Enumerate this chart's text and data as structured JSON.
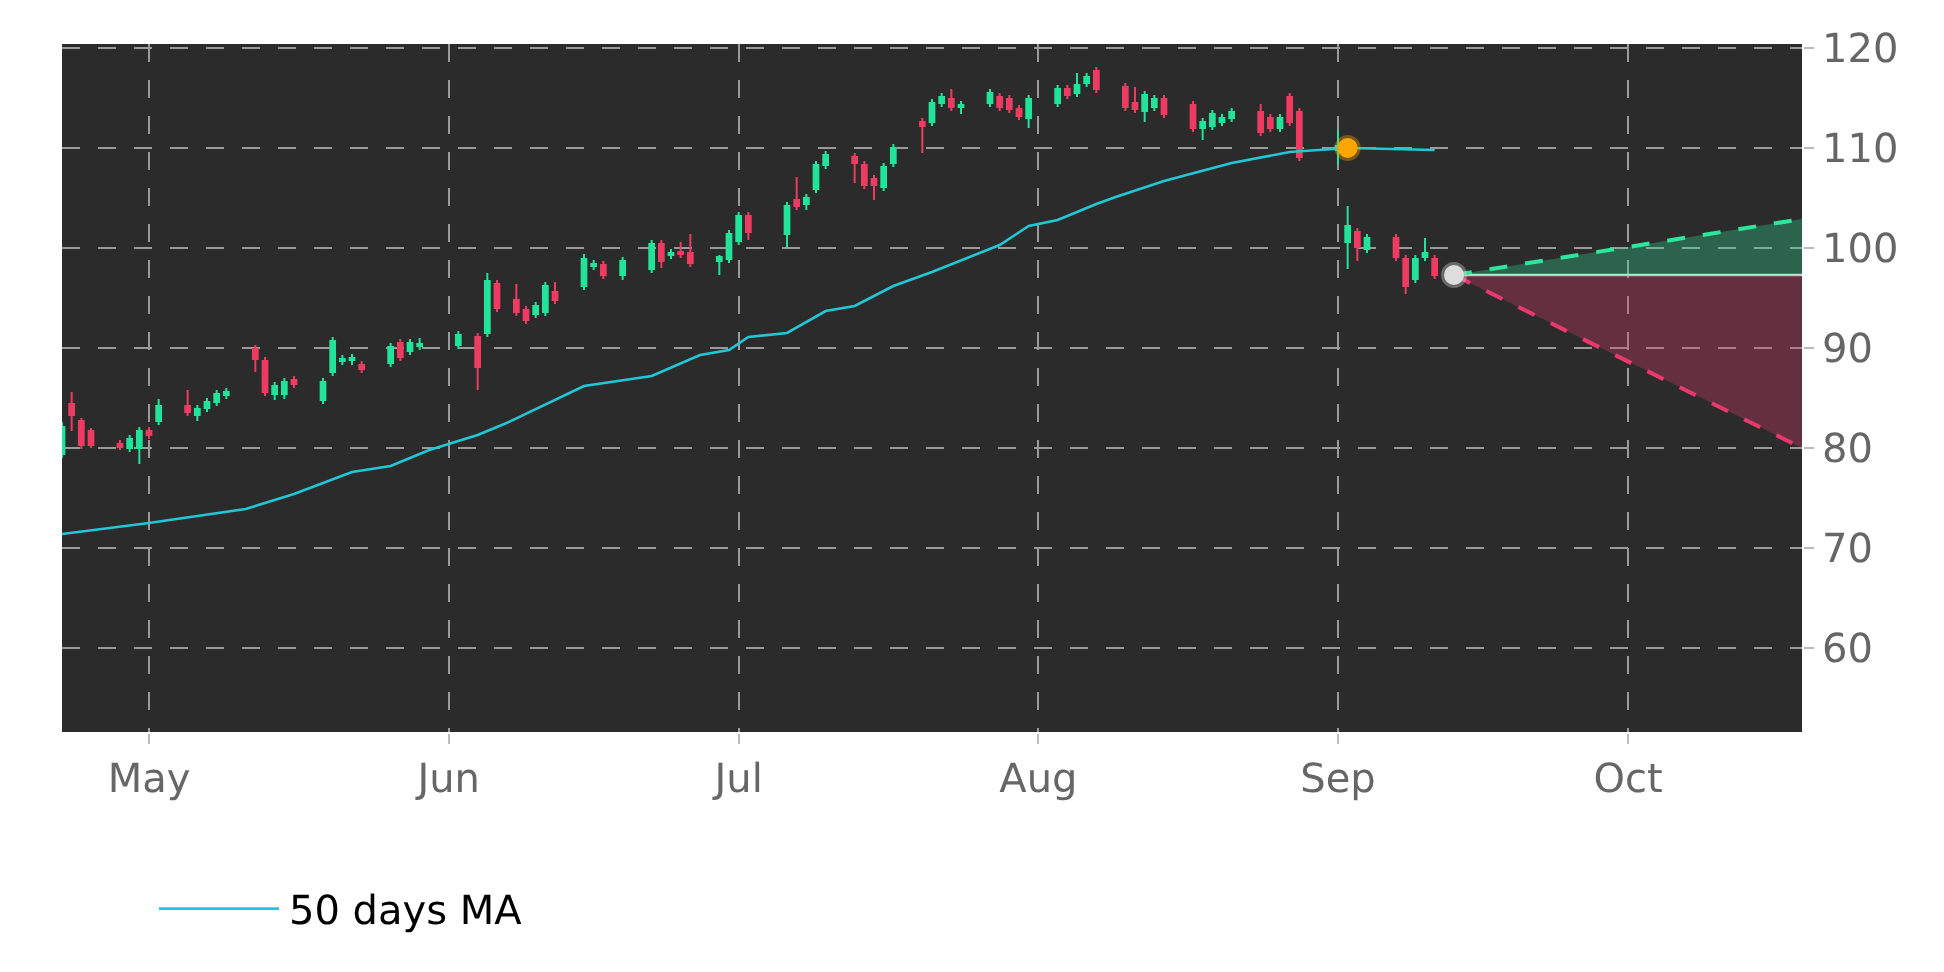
{
  "chart_data": {
    "type": "candlestick",
    "xlim": [
      "--04-22",
      "--10-19"
    ],
    "xticks": [
      {
        "value": "--05-01",
        "label": "May"
      },
      {
        "value": "--06-01",
        "label": "Jun"
      },
      {
        "value": "--07-01",
        "label": "Jul"
      },
      {
        "value": "--08-01",
        "label": "Aug"
      },
      {
        "value": "--09-01",
        "label": "Sep"
      },
      {
        "value": "--10-01",
        "label": "Oct"
      }
    ],
    "ylim": [
      51.6,
      120.4
    ],
    "yticks": [
      60,
      70,
      80,
      90,
      100,
      110,
      120
    ],
    "grid": true,
    "legend": "bottom",
    "series": [
      {
        "type": "line",
        "name": "50 days MA",
        "color": "#22c7d6",
        "x": [
          "--04-22",
          "--05-01",
          "--05-11",
          "--05-16",
          "--05-22",
          "--05-26",
          "--05-30",
          "--06-04",
          "--06-07",
          "--06-15",
          "--06-22",
          "--06-27",
          "--06-30",
          "--07-02",
          "--07-06",
          "--07-10",
          "--07-13",
          "--07-17",
          "--07-21",
          "--07-28",
          "--07-31",
          "--08-03",
          "--08-07",
          "--08-09",
          "--08-14",
          "--08-21",
          "--08-27",
          "--09-02",
          "--09-11"
        ],
        "values": [
          71.4,
          72.5,
          73.9,
          75.4,
          77.6,
          78.2,
          79.8,
          81.3,
          82.5,
          86.2,
          87.2,
          89.3,
          89.8,
          91.1,
          91.5,
          93.7,
          94.2,
          96.2,
          97.6,
          100.3,
          102.2,
          102.8,
          104.4,
          105.1,
          106.7,
          108.5,
          109.6,
          110.0,
          109.8
        ]
      },
      {
        "type": "line",
        "color": "#e8e8e8",
        "x": [
          "--09-13",
          "--10-19"
        ],
        "values": [
          97.3,
          97.3
        ]
      },
      {
        "type": "line",
        "color": "#2ee59d",
        "line_style": "dashed",
        "x": [
          "--09-13",
          "--10-19"
        ],
        "values": [
          97.3,
          102.9
        ],
        "lower": [
          97.3,
          97.3
        ],
        "upper": [
          97.3,
          102.9
        ]
      },
      {
        "type": "line",
        "color": "#e8386d",
        "line_style": "dashed",
        "x": [
          "--09-13",
          "--10-19"
        ],
        "values": [
          97.3,
          80.0
        ],
        "lower": [
          97.3,
          80.0
        ],
        "upper": [
          97.3,
          97.3
        ]
      },
      {
        "type": "scatter",
        "color": "#ffa500",
        "marker": "circle",
        "x": [
          "--09-02"
        ],
        "values": [
          110.0
        ]
      },
      {
        "type": "scatter",
        "color": "#dddddd",
        "marker": "circle",
        "x": [
          "--09-13"
        ],
        "values": [
          97.3
        ]
      },
      {
        "colors": [
          "#22e39a",
          "#ee3b62",
          "#ee3b62",
          "#ee3b62",
          "#ee3b62",
          "#22e39a",
          "#22e39a",
          "#ee3b62",
          "#22e39a",
          "#ee3b62",
          "#22e39a",
          "#22e39a",
          "#22e39a",
          "#22e39a",
          "#ee3b62",
          "#ee3b62",
          "#22e39a",
          "#22e39a",
          "#ee3b62",
          "#22e39a",
          "#22e39a",
          "#22e39a",
          "#22e39a",
          "#ee3b62",
          "#22e39a",
          "#ee3b62",
          "#22e39a",
          "#22e39a",
          "#22e39a",
          "#ee3b62",
          "#22e39a",
          "#ee3b62",
          "#ee3b62",
          "#ee3b62",
          "#22e39a",
          "#22e39a",
          "#ee3b62",
          "#22e39a",
          "#22e39a",
          "#ee3b62",
          "#22e39a",
          "#22e39a",
          "#ee3b62",
          "#22e39a",
          "#ee3b62",
          "#ee3b62",
          "#22e39a",
          "#22e39a",
          "#22e39a",
          "#ee3b62",
          "#22e39a",
          "#ee3b62",
          "#22e39a",
          "#22e39a",
          "#22e39a",
          "#ee3b62",
          "#ee3b62",
          "#ee3b62",
          "#22e39a",
          "#22e39a",
          "#ee3b62",
          "#22e39a",
          "#22e39a",
          "#ee3b62",
          "#22e39a",
          "#22e39a",
          "#ee3b62",
          "#ee3b62",
          "#ee3b62",
          "#22e39a",
          "#22e39a",
          "#ee3b62",
          "#22e39a",
          "#22e39a",
          "#ee3b62",
          "#ee3b62",
          "#ee3b62",
          "#22e39a",
          "#22e39a",
          "#ee3b62",
          "#ee3b62",
          "#22e39a",
          "#22e39a",
          "#22e39a",
          "#22e39a",
          "#ee3b62",
          "#ee3b62",
          "#22e39a",
          "#ee3b62",
          "#ee3b62",
          "#22e39a",
          "#22e39a",
          "#ee3b62",
          "#22e39a",
          "#ee3b62",
          "#ee3b62",
          "#22e39a",
          "#22e39a",
          "#ee3b62"
        ],
        "x": [
          "--04-22",
          "--04-23",
          "--04-24",
          "--04-25",
          "--04-28",
          "--04-29",
          "--04-30",
          "--05-01",
          "--05-02",
          "--05-05",
          "--05-06",
          "--05-07",
          "--05-08",
          "--05-09",
          "--05-12",
          "--05-13",
          "--05-14",
          "--05-15",
          "--05-16",
          "--05-19",
          "--05-20",
          "--05-21",
          "--05-22",
          "--05-23",
          "--05-26",
          "--05-27",
          "--05-28",
          "--05-29",
          "--06-02",
          "--06-04",
          "--06-05",
          "--06-06",
          "--06-08",
          "--06-09",
          "--06-10",
          "--06-11",
          "--06-12",
          "--06-15",
          "--06-16",
          "--06-17",
          "--06-19",
          "--06-22",
          "--06-23",
          "--06-24",
          "--06-25",
          "--06-26",
          "--06-29",
          "--06-30",
          "--07-01",
          "--07-02",
          "--07-06",
          "--07-07",
          "--07-08",
          "--07-09",
          "--07-10",
          "--07-13",
          "--07-14",
          "--07-15",
          "--07-16",
          "--07-17",
          "--07-20",
          "--07-21",
          "--07-22",
          "--07-23",
          "--07-24",
          "--07-27",
          "--07-28",
          "--07-29",
          "--07-30",
          "--07-31",
          "--08-03",
          "--08-04",
          "--08-05",
          "--08-06",
          "--08-07",
          "--08-10",
          "--08-11",
          "--08-12",
          "--08-13",
          "--08-14",
          "--08-17",
          "--08-18",
          "--08-19",
          "--08-20",
          "--08-21",
          "--08-24",
          "--08-25",
          "--08-26",
          "--08-27",
          "--08-28",
          "--09-01",
          "--09-02",
          "--09-03",
          "--09-04",
          "--09-07",
          "--09-08",
          "--09-09",
          "--09-10",
          "--09-11"
        ],
        "ohlc": [
          [
            79.4,
            82.6,
            79.0,
            82.1
          ],
          [
            84.4,
            85.6,
            81.7,
            83.3
          ],
          [
            82.7,
            83.0,
            79.9,
            80.3
          ],
          [
            81.7,
            82.0,
            80.0,
            80.3
          ],
          [
            80.4,
            80.8,
            79.8,
            80.1
          ],
          [
            80.0,
            81.3,
            79.6,
            80.9
          ],
          [
            80.0,
            82.1,
            78.4,
            81.7
          ],
          [
            81.7,
            82.1,
            80.9,
            81.3
          ],
          [
            82.7,
            84.9,
            82.3,
            84.2
          ],
          [
            84.2,
            85.8,
            83.2,
            83.6
          ],
          [
            83.3,
            84.3,
            82.7,
            83.9
          ],
          [
            84.0,
            85.0,
            83.6,
            84.6
          ],
          [
            84.6,
            85.8,
            84.2,
            85.4
          ],
          [
            85.3,
            86.0,
            84.9,
            85.6
          ],
          [
            89.9,
            90.3,
            87.6,
            88.9
          ],
          [
            88.7,
            89.1,
            85.2,
            85.6
          ],
          [
            85.4,
            86.6,
            84.8,
            86.2
          ],
          [
            85.4,
            87.0,
            84.9,
            86.6
          ],
          [
            86.8,
            87.2,
            86.0,
            86.4
          ],
          [
            84.8,
            87.0,
            84.4,
            86.6
          ],
          [
            87.6,
            91.1,
            87.2,
            90.7
          ],
          [
            88.7,
            89.3,
            88.3,
            88.9
          ],
          [
            88.8,
            89.4,
            88.3,
            89.0
          ],
          [
            88.3,
            88.7,
            87.5,
            87.9
          ],
          [
            88.5,
            90.5,
            88.1,
            90.1
          ],
          [
            90.5,
            90.9,
            88.7,
            89.1
          ],
          [
            89.7,
            90.9,
            89.3,
            90.5
          ],
          [
            90.2,
            91.0,
            89.8,
            90.4
          ],
          [
            90.3,
            91.7,
            89.9,
            91.3
          ],
          [
            91.1,
            91.5,
            85.8,
            88.1
          ],
          [
            91.5,
            97.5,
            91.1,
            96.7
          ],
          [
            96.4,
            96.8,
            93.6,
            94.0
          ],
          [
            94.8,
            96.4,
            93.2,
            93.6
          ],
          [
            93.8,
            94.2,
            92.4,
            92.8
          ],
          [
            93.4,
            94.6,
            93.0,
            94.2
          ],
          [
            93.6,
            96.6,
            93.2,
            96.2
          ],
          [
            95.6,
            96.6,
            94.4,
            94.8
          ],
          [
            96.2,
            99.4,
            95.8,
            98.9
          ],
          [
            98.2,
            98.8,
            97.8,
            98.4
          ],
          [
            98.3,
            98.7,
            96.9,
            97.3
          ],
          [
            97.3,
            99.1,
            96.8,
            98.7
          ],
          [
            97.9,
            100.8,
            97.5,
            100.4
          ],
          [
            100.4,
            100.8,
            98.0,
            98.7
          ],
          [
            99.3,
            99.9,
            98.9,
            99.5
          ],
          [
            99.6,
            100.6,
            99.0,
            99.4
          ],
          [
            99.5,
            101.4,
            98.1,
            98.5
          ],
          [
            98.7,
            99.3,
            97.3,
            99.1
          ],
          [
            98.9,
            101.8,
            98.5,
            101.4
          ],
          [
            100.7,
            103.6,
            100.3,
            103.2
          ],
          [
            103.2,
            103.6,
            100.8,
            101.6
          ],
          [
            101.4,
            104.6,
            100.0,
            104.2
          ],
          [
            104.8,
            107.1,
            103.8,
            104.2
          ],
          [
            104.4,
            105.4,
            103.8,
            105.0
          ],
          [
            105.9,
            108.7,
            105.5,
            108.3
          ],
          [
            108.3,
            109.7,
            107.9,
            109.3
          ],
          [
            109.1,
            109.5,
            106.5,
            108.5
          ],
          [
            108.3,
            108.7,
            105.9,
            106.3
          ],
          [
            106.9,
            107.3,
            104.8,
            106.3
          ],
          [
            106.1,
            108.5,
            105.7,
            108.1
          ],
          [
            108.5,
            110.4,
            108.1,
            110.0
          ],
          [
            112.6,
            113.0,
            109.5,
            112.2
          ],
          [
            112.6,
            114.9,
            112.2,
            114.5
          ],
          [
            114.5,
            115.5,
            114.1,
            115.1
          ],
          [
            114.9,
            115.9,
            113.7,
            114.1
          ],
          [
            114.1,
            114.7,
            113.4,
            114.3
          ],
          [
            114.5,
            115.9,
            114.1,
            115.5
          ],
          [
            115.1,
            115.5,
            113.7,
            114.1
          ],
          [
            114.9,
            115.3,
            113.5,
            113.9
          ],
          [
            113.9,
            114.3,
            112.8,
            113.2
          ],
          [
            113.0,
            115.3,
            112.0,
            114.9
          ],
          [
            114.5,
            116.3,
            114.1,
            115.9
          ],
          [
            115.9,
            116.3,
            114.9,
            115.3
          ],
          [
            115.5,
            117.5,
            115.1,
            116.3
          ],
          [
            116.5,
            117.5,
            116.1,
            117.1
          ],
          [
            117.7,
            118.1,
            115.5,
            115.9
          ],
          [
            116.1,
            116.5,
            113.7,
            114.1
          ],
          [
            114.5,
            116.1,
            113.5,
            113.9
          ],
          [
            113.7,
            115.7,
            112.6,
            115.3
          ],
          [
            114.1,
            115.3,
            113.7,
            114.9
          ],
          [
            114.9,
            115.3,
            113.0,
            113.4
          ],
          [
            114.3,
            114.7,
            111.6,
            112.0
          ],
          [
            112.0,
            113.0,
            110.8,
            112.6
          ],
          [
            112.2,
            113.8,
            111.8,
            113.4
          ],
          [
            112.6,
            113.4,
            112.2,
            113.0
          ],
          [
            113.0,
            114.0,
            112.6,
            113.6
          ],
          [
            113.6,
            114.4,
            111.2,
            111.6
          ],
          [
            113.0,
            113.4,
            111.6,
            112.0
          ],
          [
            112.0,
            113.4,
            111.6,
            113.0
          ],
          [
            115.1,
            115.5,
            112.2,
            112.6
          ],
          [
            113.6,
            114.0,
            108.7,
            109.1
          ],
          [
            109.8,
            111.8,
            108.4,
            110.2
          ],
          [
            100.6,
            104.2,
            97.9,
            102.2
          ],
          [
            101.6,
            102.0,
            98.7,
            100.1
          ],
          [
            99.9,
            101.4,
            99.5,
            101.0
          ],
          [
            101.0,
            101.4,
            98.7,
            99.1
          ],
          [
            98.9,
            99.3,
            95.4,
            96.2
          ],
          [
            96.9,
            99.3,
            96.5,
            98.9
          ],
          [
            99.1,
            101.0,
            98.7,
            99.5
          ],
          [
            98.9,
            99.3,
            96.9,
            97.3
          ]
        ]
      }
    ]
  }
}
